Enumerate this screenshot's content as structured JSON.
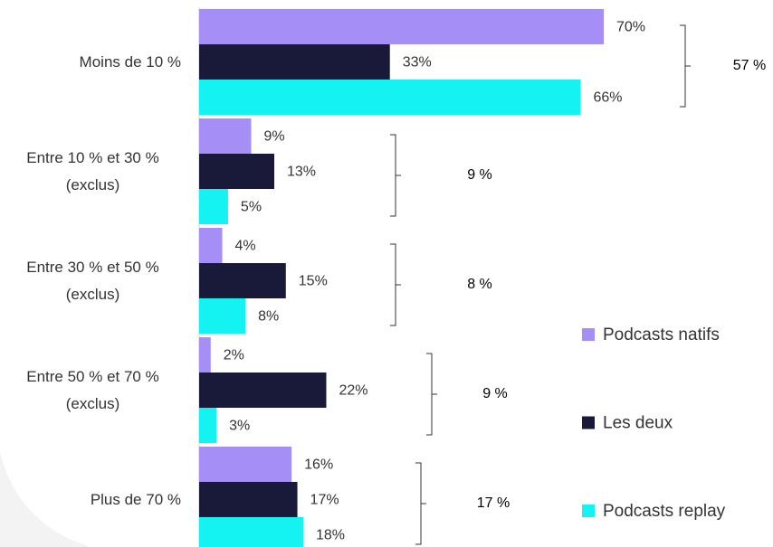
{
  "chart_data": {
    "type": "bar",
    "orientation": "horizontal",
    "categories": [
      "Moins de 10 %",
      "Entre 10 % et 30 % (exclus)",
      "Entre 30 % et 50 % (exclus)",
      "Entre 50 % et 70 % (exclus)",
      "Plus de 70 %"
    ],
    "series": [
      {
        "name": "Podcasts natifs",
        "color": "#a68ef7",
        "values": [
          70,
          9,
          4,
          2,
          16
        ],
        "value_labels": [
          "70%",
          "9%",
          "4%",
          "2%",
          "16%"
        ]
      },
      {
        "name": "Les deux",
        "color": "#191a3a",
        "values": [
          33,
          13,
          15,
          22,
          17
        ],
        "value_labels": [
          "33%",
          "13%",
          "15%",
          "22%",
          "17%"
        ]
      },
      {
        "name": "Podcasts replay",
        "color": "#14f2f2",
        "values": [
          66,
          5,
          8,
          3,
          18
        ],
        "value_labels": [
          "66%",
          "5%",
          "8%",
          "3%",
          "18%"
        ]
      }
    ],
    "brackets": {
      "values": [
        57,
        9,
        8,
        9,
        17
      ],
      "value_labels": [
        "57 %",
        "9 %",
        "8 %",
        "9 %",
        "17 %"
      ]
    },
    "xlim": [
      0,
      70
    ],
    "legend": "right"
  }
}
